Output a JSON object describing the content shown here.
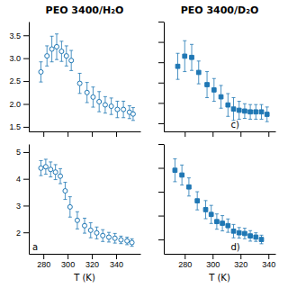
{
  "chart_data": [
    {
      "type": "scatter",
      "title": "PEO 3400/H₂O",
      "x": [
        278,
        283,
        287,
        291,
        295,
        299,
        303,
        310,
        316,
        321,
        326,
        331,
        336,
        341,
        346,
        351,
        354
      ],
      "values": [
        2.7,
        3.05,
        3.2,
        3.25,
        3.15,
        3.05,
        2.95,
        2.45,
        2.25,
        2.15,
        2.05,
        1.98,
        1.95,
        1.88,
        1.88,
        1.82,
        1.78
      ],
      "error": [
        0.22,
        0.22,
        0.28,
        0.28,
        0.22,
        0.22,
        0.22,
        0.22,
        0.22,
        0.22,
        0.22,
        0.18,
        0.18,
        0.18,
        0.18,
        0.14,
        0.14
      ],
      "marker": "circle-open",
      "xlim": [
        268,
        360
      ],
      "ylim": [
        1.4,
        3.8
      ],
      "xticks": [
        280,
        300,
        320,
        340
      ],
      "yticks": [
        1.5,
        {
          "value": 2.0,
          "label": "2.0"
        },
        2.5,
        {
          "value": 3.0,
          "label": "3.0"
        },
        3.5
      ],
      "tick_labels": "y"
    },
    {
      "type": "scatter",
      "xlabel": "T (K)",
      "annotation": "a",
      "x": [
        278,
        282,
        286,
        290,
        294,
        298,
        302,
        308,
        314,
        319,
        324,
        329,
        334,
        339,
        344,
        349,
        353
      ],
      "values": [
        4.4,
        4.45,
        4.35,
        4.25,
        4.1,
        3.55,
        2.95,
        2.45,
        2.25,
        2.08,
        1.98,
        1.88,
        1.82,
        1.78,
        1.72,
        1.68,
        1.62
      ],
      "error": [
        0.28,
        0.28,
        0.28,
        0.28,
        0.28,
        0.32,
        0.38,
        0.32,
        0.28,
        0.28,
        0.22,
        0.22,
        0.18,
        0.18,
        0.14,
        0.14,
        0.14
      ],
      "marker": "circle-open",
      "xlim": [
        268,
        360
      ],
      "ylim": [
        1.2,
        5.3
      ],
      "xticks": [
        280,
        300,
        320,
        340
      ],
      "yticks": [
        2,
        3,
        4,
        5
      ]
    },
    {
      "type": "scatter",
      "title": "PEO 3400/D₂O",
      "annotation": "c)",
      "x": [
        275,
        280,
        285,
        290,
        296,
        301,
        306,
        311,
        315,
        319,
        323,
        327,
        331,
        335,
        339
      ],
      "values": [
        3.4,
        3.65,
        3.62,
        3.25,
        2.95,
        2.82,
        2.65,
        2.45,
        2.35,
        2.32,
        2.3,
        2.28,
        2.28,
        2.28,
        2.22
      ],
      "error": [
        0.32,
        0.38,
        0.32,
        0.28,
        0.32,
        0.28,
        0.28,
        0.28,
        0.28,
        0.22,
        0.18,
        0.18,
        0.18,
        0.18,
        0.18
      ],
      "marker": "square",
      "xlim": [
        265,
        345
      ],
      "ylim": [
        1.8,
        4.5
      ],
      "xticks": [
        280,
        300,
        320,
        340
      ],
      "yticks": [
        2,
        2.5,
        3,
        3.5,
        4,
        4.5
      ],
      "tick_labels": false
    },
    {
      "type": "scatter",
      "xlabel": "T (K)",
      "annotation": "d)",
      "x": [
        273,
        278,
        283,
        289,
        295,
        299,
        303,
        307,
        311,
        315,
        319,
        323,
        327,
        331,
        335
      ],
      "values": [
        4.9,
        4.7,
        4.2,
        3.62,
        3.25,
        3.05,
        2.75,
        2.68,
        2.58,
        2.35,
        2.28,
        2.25,
        2.15,
        2.1,
        2.0
      ],
      "error": [
        0.48,
        0.42,
        0.38,
        0.38,
        0.38,
        0.38,
        0.32,
        0.32,
        0.28,
        0.28,
        0.22,
        0.22,
        0.22,
        0.18,
        0.18
      ],
      "marker": "square",
      "xlim": [
        265,
        345
      ],
      "ylim": [
        1.4,
        6.0
      ],
      "xticks": [
        280,
        300,
        320,
        340
      ],
      "yticks": [
        2,
        3,
        4,
        5,
        6
      ],
      "tick_labels": "x"
    }
  ]
}
